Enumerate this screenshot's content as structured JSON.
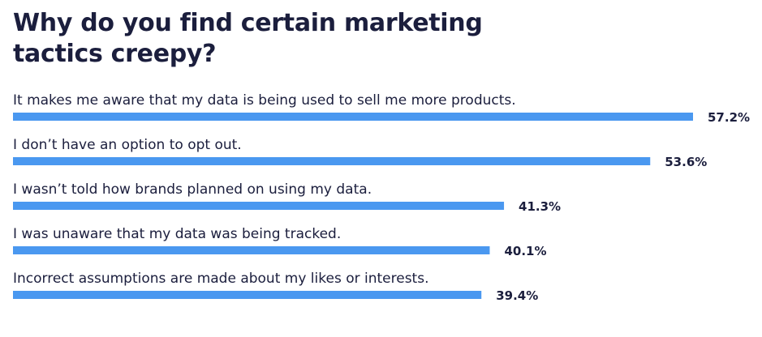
{
  "chart_data": {
    "type": "bar",
    "orientation": "horizontal",
    "title": "Why do you find certain marketing tactics creepy?",
    "xlabel": "",
    "ylabel": "",
    "categories": [
      "It makes me aware that my data is being used to sell me more products.",
      "I don’t have an option to opt out.",
      "I wasn’t told how brands planned on using my data.",
      "I was unaware that my data was being tracked.",
      "Incorrect assumptions are made about my likes or interests."
    ],
    "values": [
      57.2,
      53.6,
      41.3,
      40.1,
      39.4
    ],
    "value_labels": [
      "57.2%",
      "53.6%",
      "41.3%",
      "40.1%",
      "39.4%"
    ],
    "unit": "%",
    "bar_color": "#4a98f0",
    "text_color": "#1b1e3d",
    "grid": false,
    "legend": "none"
  }
}
